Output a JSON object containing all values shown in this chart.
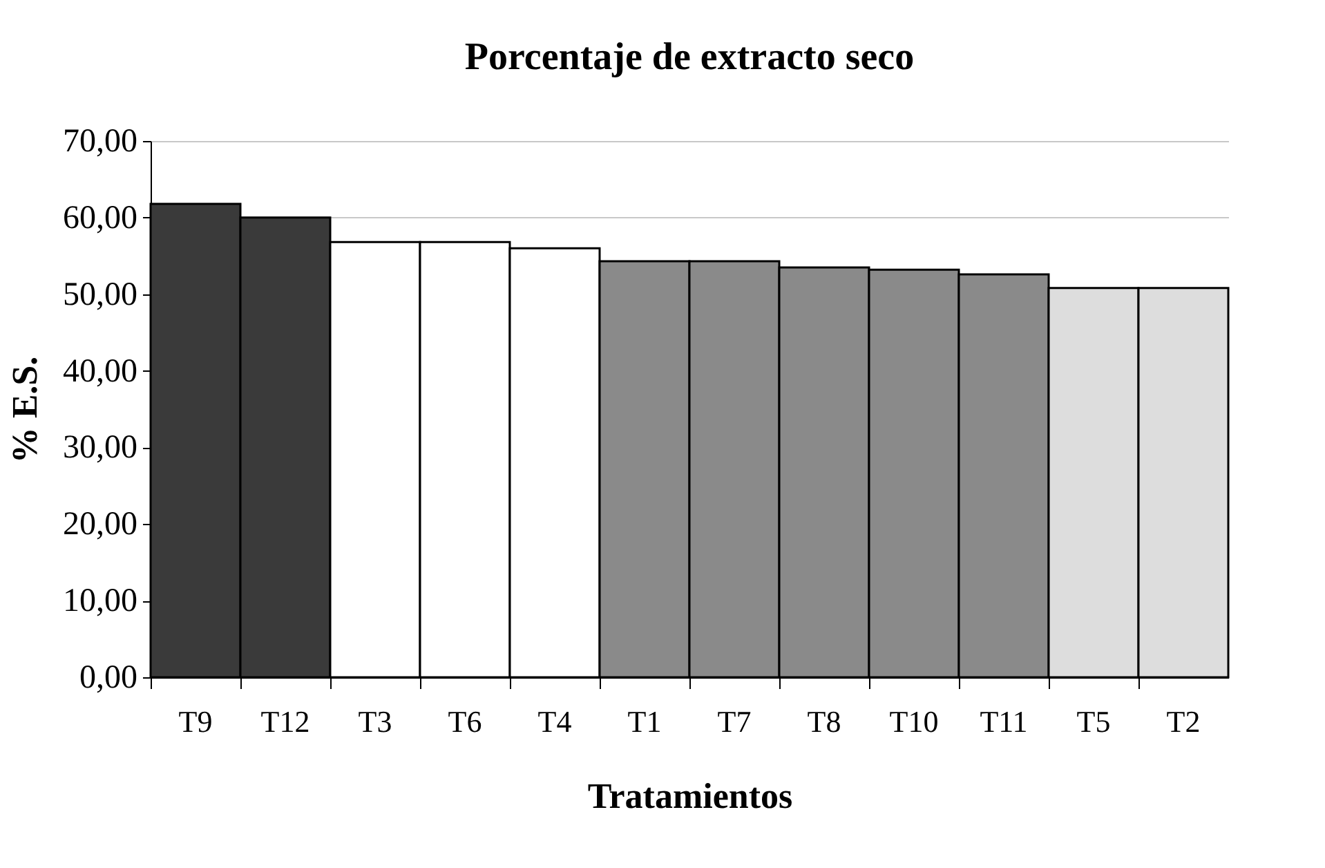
{
  "chart_data": {
    "type": "bar",
    "title": "Porcentaje de extracto seco",
    "xlabel": "Tratamientos",
    "ylabel": "% E.S.",
    "categories": [
      "T9",
      "T12",
      "T3",
      "T6",
      "T4",
      "T1",
      "T7",
      "T8",
      "T10",
      "T11",
      "T5",
      "T2"
    ],
    "values": [
      61.8,
      60.0,
      56.8,
      56.8,
      56.0,
      54.3,
      54.3,
      53.5,
      53.2,
      52.6,
      50.8,
      50.8
    ],
    "colors": [
      "#3a3a3a",
      "#3a3a3a",
      "#ffffff",
      "#ffffff",
      "#ffffff",
      "#8a8a8a",
      "#8a8a8a",
      "#8a8a8a",
      "#8a8a8a",
      "#8a8a8a",
      "#dddddd",
      "#dddddd"
    ],
    "ylim": [
      0,
      70
    ],
    "yticks": [
      {
        "value": 0,
        "label": "0,00"
      },
      {
        "value": 10,
        "label": "10,00"
      },
      {
        "value": 20,
        "label": "20,00"
      },
      {
        "value": 30,
        "label": "30,00"
      },
      {
        "value": 40,
        "label": "40,00"
      },
      {
        "value": 50,
        "label": "50,00"
      },
      {
        "value": 60,
        "label": "60,00"
      },
      {
        "value": 70,
        "label": "70,00"
      }
    ],
    "grid": "y"
  }
}
